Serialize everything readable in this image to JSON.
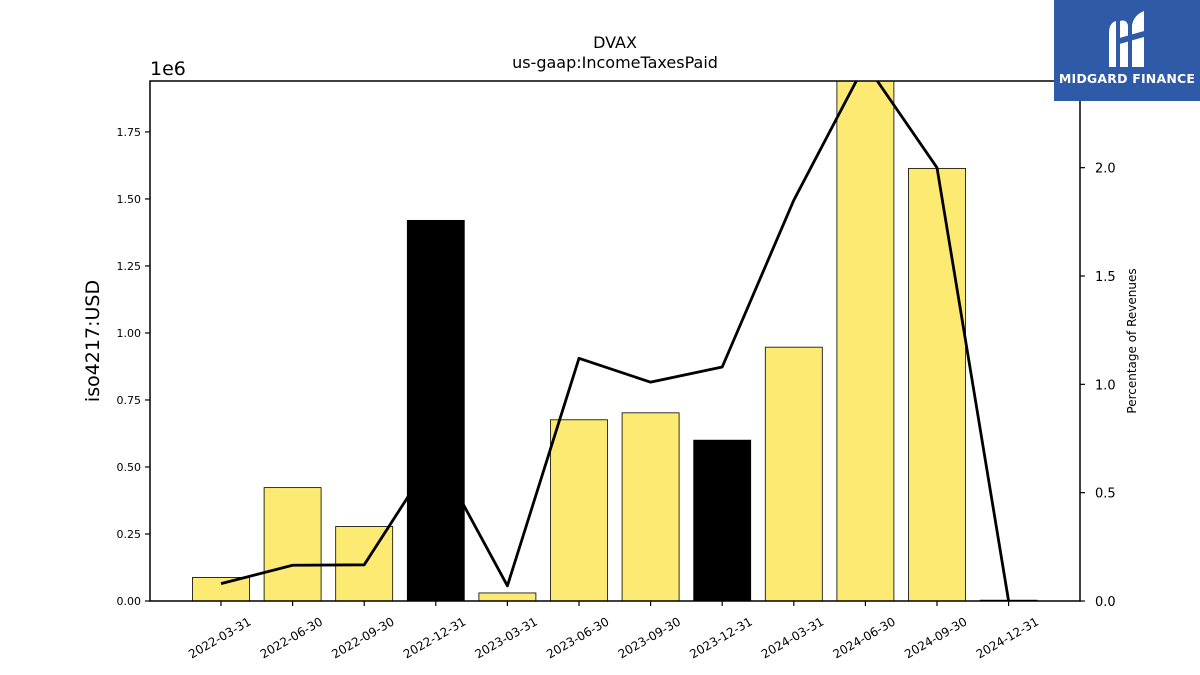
{
  "logo": {
    "text": "MIDGARD FINANCE",
    "icon": "midgard-m-logo-icon",
    "background": "#2f5aa8"
  },
  "chart_data": {
    "type": "bar",
    "title": "DVAX",
    "subtitle": "us-gaap:IncomeTaxesPaid",
    "ylabel": "iso4217:USD",
    "ylabel_right": "Percentage of Revenues",
    "y_offset_label": "1e6",
    "categories": [
      "2022-03-31",
      "2022-06-30",
      "2022-09-30",
      "2022-12-31",
      "2023-03-31",
      "2023-06-30",
      "2023-09-30",
      "2023-12-31",
      "2024-03-31",
      "2024-06-30",
      "2024-09-30",
      "2024-12-31"
    ],
    "series": [
      {
        "type": "bar",
        "values": [
          88000,
          423000,
          278000,
          1420000,
          30000,
          676000,
          702000,
          600000,
          947000,
          1940000,
          1614000,
          3000
        ],
        "colors": [
          "#fdea72",
          "#fdea72",
          "#fdea72",
          "#000000",
          "#fdea72",
          "#fdea72",
          "#fdea72",
          "#000000",
          "#fdea72",
          "#fdea72",
          "#fdea72",
          "#fdea72"
        ]
      },
      {
        "type": "line",
        "axis": "right",
        "values": [
          0.08,
          0.165,
          0.167,
          0.68,
          0.07,
          1.12,
          1.01,
          1.08,
          1.85,
          2.48,
          2.0,
          0.0
        ],
        "color": "#000000"
      }
    ],
    "ylim": [
      0,
      1940000
    ],
    "ylim_right": [
      0,
      2.4
    ],
    "yticks": [
      0,
      250000,
      500000,
      750000,
      1000000,
      1250000,
      1500000,
      1750000
    ],
    "yticklabels": [
      "0.00",
      "0.25",
      "0.50",
      "0.75",
      "1.00",
      "1.25",
      "1.50",
      "1.75"
    ],
    "yticks_right": [
      0,
      0.5,
      1.0,
      1.5,
      2.0
    ],
    "yticklabels_right": [
      "0.0",
      "0.5",
      "1.0",
      "1.5",
      "2.0"
    ],
    "grid": false,
    "legend": "none"
  }
}
